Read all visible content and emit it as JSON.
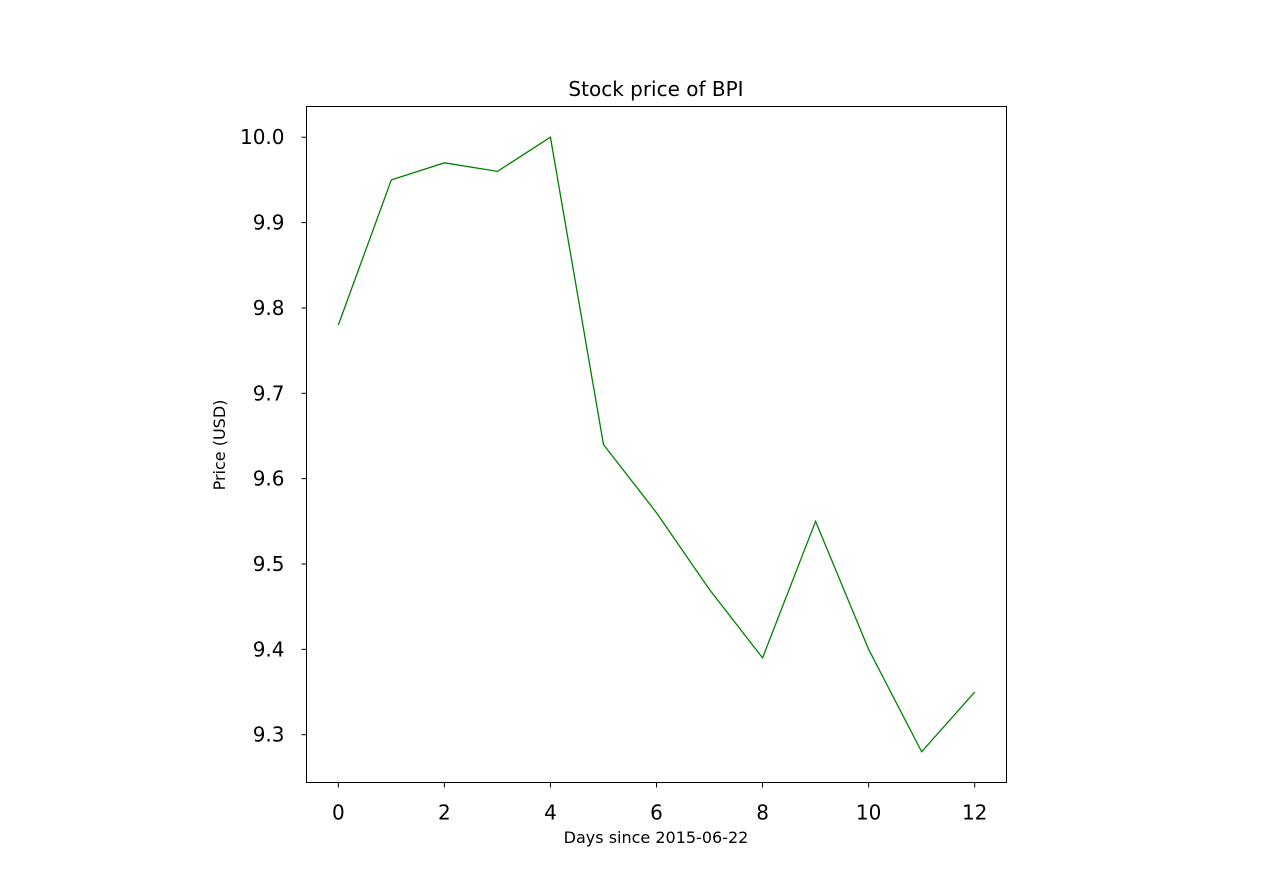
{
  "chart_data": {
    "type": "line",
    "title": "Stock price of BPI",
    "xlabel": "Days since 2015-06-22",
    "ylabel": "Price (USD)",
    "x": [
      0,
      1,
      2,
      3,
      4,
      5,
      6,
      7,
      8,
      9,
      10,
      11,
      12
    ],
    "series": [
      {
        "values": [
          9.78,
          9.95,
          9.97,
          9.96,
          10.0,
          9.64,
          9.56,
          9.47,
          9.39,
          9.55,
          9.4,
          9.28,
          9.35
        ],
        "color": "#008000"
      }
    ],
    "xticks": [
      "0",
      "2",
      "4",
      "6",
      "8",
      "10",
      12
    ],
    "yticks": [
      "9.3",
      "9.4",
      "9.5",
      "9.6",
      "9.7",
      "9.8",
      "9.9",
      "10.0"
    ],
    "xlim": [
      -0.6,
      12.6
    ],
    "ylim": [
      9.244,
      10.036
    ],
    "grid": false,
    "legend": "none"
  }
}
